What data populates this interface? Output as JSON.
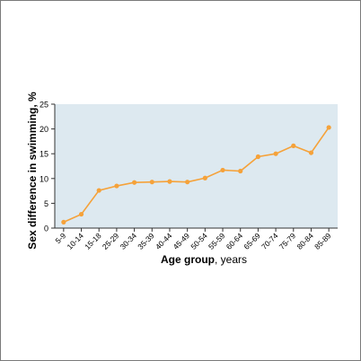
{
  "chart_data": {
    "type": "line",
    "title": "",
    "xlabel_bold": "Age group",
    "xlabel_rest": ", years",
    "ylabel": "Sex difference in swimming, %",
    "categories": [
      "5-9",
      "10-14",
      "15-18",
      "25-29",
      "30-34",
      "35-39",
      "40-44",
      "45-49",
      "50-54",
      "55-59",
      "60-64",
      "65-69",
      "70-74",
      "75-79",
      "80-84",
      "85-89"
    ],
    "series": [
      {
        "values": [
          1.2,
          2.8,
          7.6,
          8.5,
          9.2,
          9.3,
          9.4,
          9.3,
          10.1,
          11.7,
          11.5,
          14.4,
          15.0,
          16.6,
          15.2,
          20.3
        ]
      }
    ],
    "ylim": [
      0,
      25
    ],
    "yticks": [
      0,
      5,
      10,
      15,
      20,
      25
    ],
    "grid": false,
    "legend": "none",
    "colors": {
      "line": "#f5a23a",
      "plot_background": "#dde9f0",
      "axis": "#333333"
    }
  }
}
